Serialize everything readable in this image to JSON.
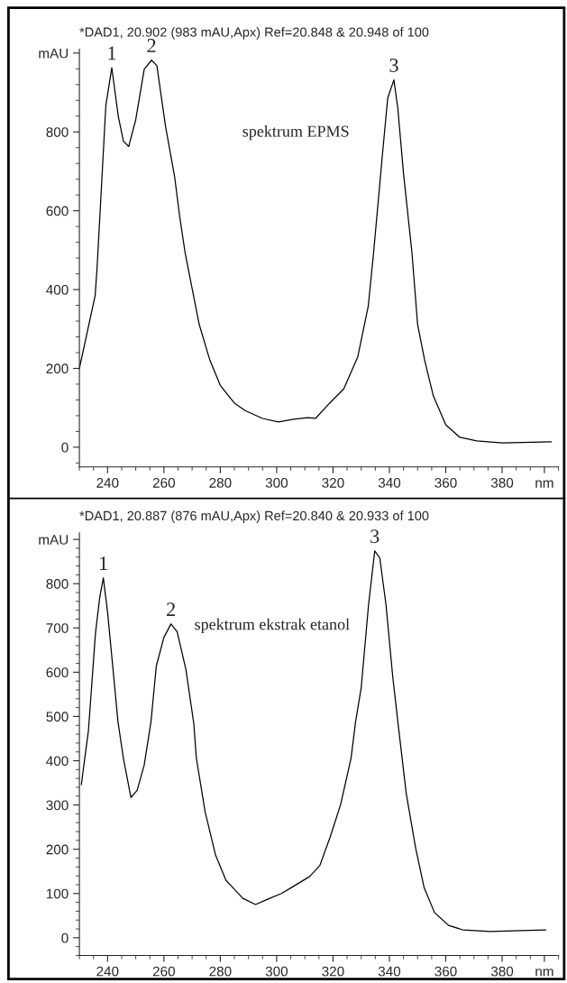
{
  "chart_data": [
    {
      "type": "line",
      "title": "*DAD1, 20.902 (983 mAU,Apx) Ref=20.848 & 20.948 of 100",
      "xlim": [
        230,
        400
      ],
      "ylim": [
        -50,
        1010
      ],
      "xticks": [
        240,
        260,
        280,
        300,
        320,
        340,
        360,
        380,
        {
          "value": 395,
          "label": "nm"
        }
      ],
      "yticks": [
        0,
        200,
        400,
        600,
        800,
        {
          "value": 1000,
          "label": "mAU"
        }
      ],
      "grid": false,
      "legend": false,
      "marker": "none",
      "line_style": "solid",
      "annotations": [
        {
          "text": "1",
          "x": 241.5,
          "y": 963
        },
        {
          "text": "2",
          "x": 255.6,
          "y": 982
        },
        {
          "text": "3",
          "x": 341.6,
          "y": 932
        },
        "spektrum EPMS"
      ],
      "series": [
        {
          "color": "#000000",
          "x": [
            230,
            235.6,
            236.3,
            239.4,
            241.5,
            243.8,
            245.6,
            247.5,
            250,
            253,
            255.6,
            257.5,
            260.6,
            263.8,
            265.6,
            267.5,
            270,
            272.5,
            276.3,
            280,
            285,
            288.8,
            295,
            300.6,
            306,
            311,
            313.8,
            318.8,
            323.8,
            328.8,
            332.5,
            334.4,
            337.5,
            339.4,
            341.6,
            343,
            345,
            348,
            350,
            352.5,
            355.6,
            360,
            365,
            371,
            380,
            397.5
          ],
          "values": [
            200,
            385,
            458,
            868,
            963,
            840,
            777,
            763,
            831,
            959,
            982,
            968,
            813,
            686,
            585,
            494,
            403,
            312,
            221,
            157,
            112,
            93,
            73,
            64,
            71,
            75,
            73,
            112,
            148,
            230,
            358,
            494,
            740,
            886,
            932,
            859,
            695,
            494,
            312,
            221,
            130,
            57,
            25,
            16,
            11,
            14
          ]
        }
      ]
    },
    {
      "type": "line",
      "title": "*DAD1, 20.887 (876 mAU,Apx) Ref=20.840 & 20.933 of 100",
      "xlim": [
        230,
        400
      ],
      "ylim": [
        -40,
        915
      ],
      "xticks": [
        240,
        260,
        280,
        300,
        320,
        340,
        360,
        380,
        {
          "value": 395,
          "label": "nm"
        }
      ],
      "yticks": [
        0,
        100,
        200,
        300,
        400,
        500,
        600,
        700,
        800,
        {
          "value": 900,
          "label": "mAU"
        }
      ],
      "grid": false,
      "legend": false,
      "marker": "none",
      "line_style": "solid",
      "annotations": [
        {
          "text": "1",
          "x": 238.5,
          "y": 813
        },
        {
          "text": "2",
          "x": 262.5,
          "y": 709
        },
        {
          "text": "3",
          "x": 334.8,
          "y": 874
        },
        "spektrum ekstrak etanol"
      ],
      "series": [
        {
          "color": "#000000",
          "x": [
            230.7,
            232.6,
            233.2,
            235.7,
            237.2,
            238.5,
            240,
            242.2,
            243.7,
            245.6,
            248.3,
            250.5,
            253,
            255.4,
            257.3,
            260,
            262.5,
            264.7,
            267.8,
            270.6,
            271.5,
            274.6,
            278.3,
            282,
            288,
            292.5,
            296.8,
            301.7,
            305.4,
            311.6,
            315.3,
            319,
            322.7,
            326.4,
            328,
            330,
            332.6,
            334.8,
            336.6,
            338.8,
            341.2,
            343,
            346,
            349.3,
            352.3,
            356,
            361,
            366,
            375.8,
            395.5
          ],
          "values": [
            346,
            439,
            467,
            687,
            768,
            813,
            736,
            589,
            488,
            406,
            317,
            333,
            390,
            488,
            614,
            679,
            709,
            691,
            606,
            484,
            406,
            285,
            187,
            130,
            89,
            75,
            87,
            100,
            114,
            138,
            163,
            228,
            301,
            406,
            488,
            565,
            752,
            874,
            858,
            752,
            589,
            488,
            325,
            203,
            114,
            57,
            28,
            18,
            14,
            18
          ]
        }
      ]
    }
  ]
}
